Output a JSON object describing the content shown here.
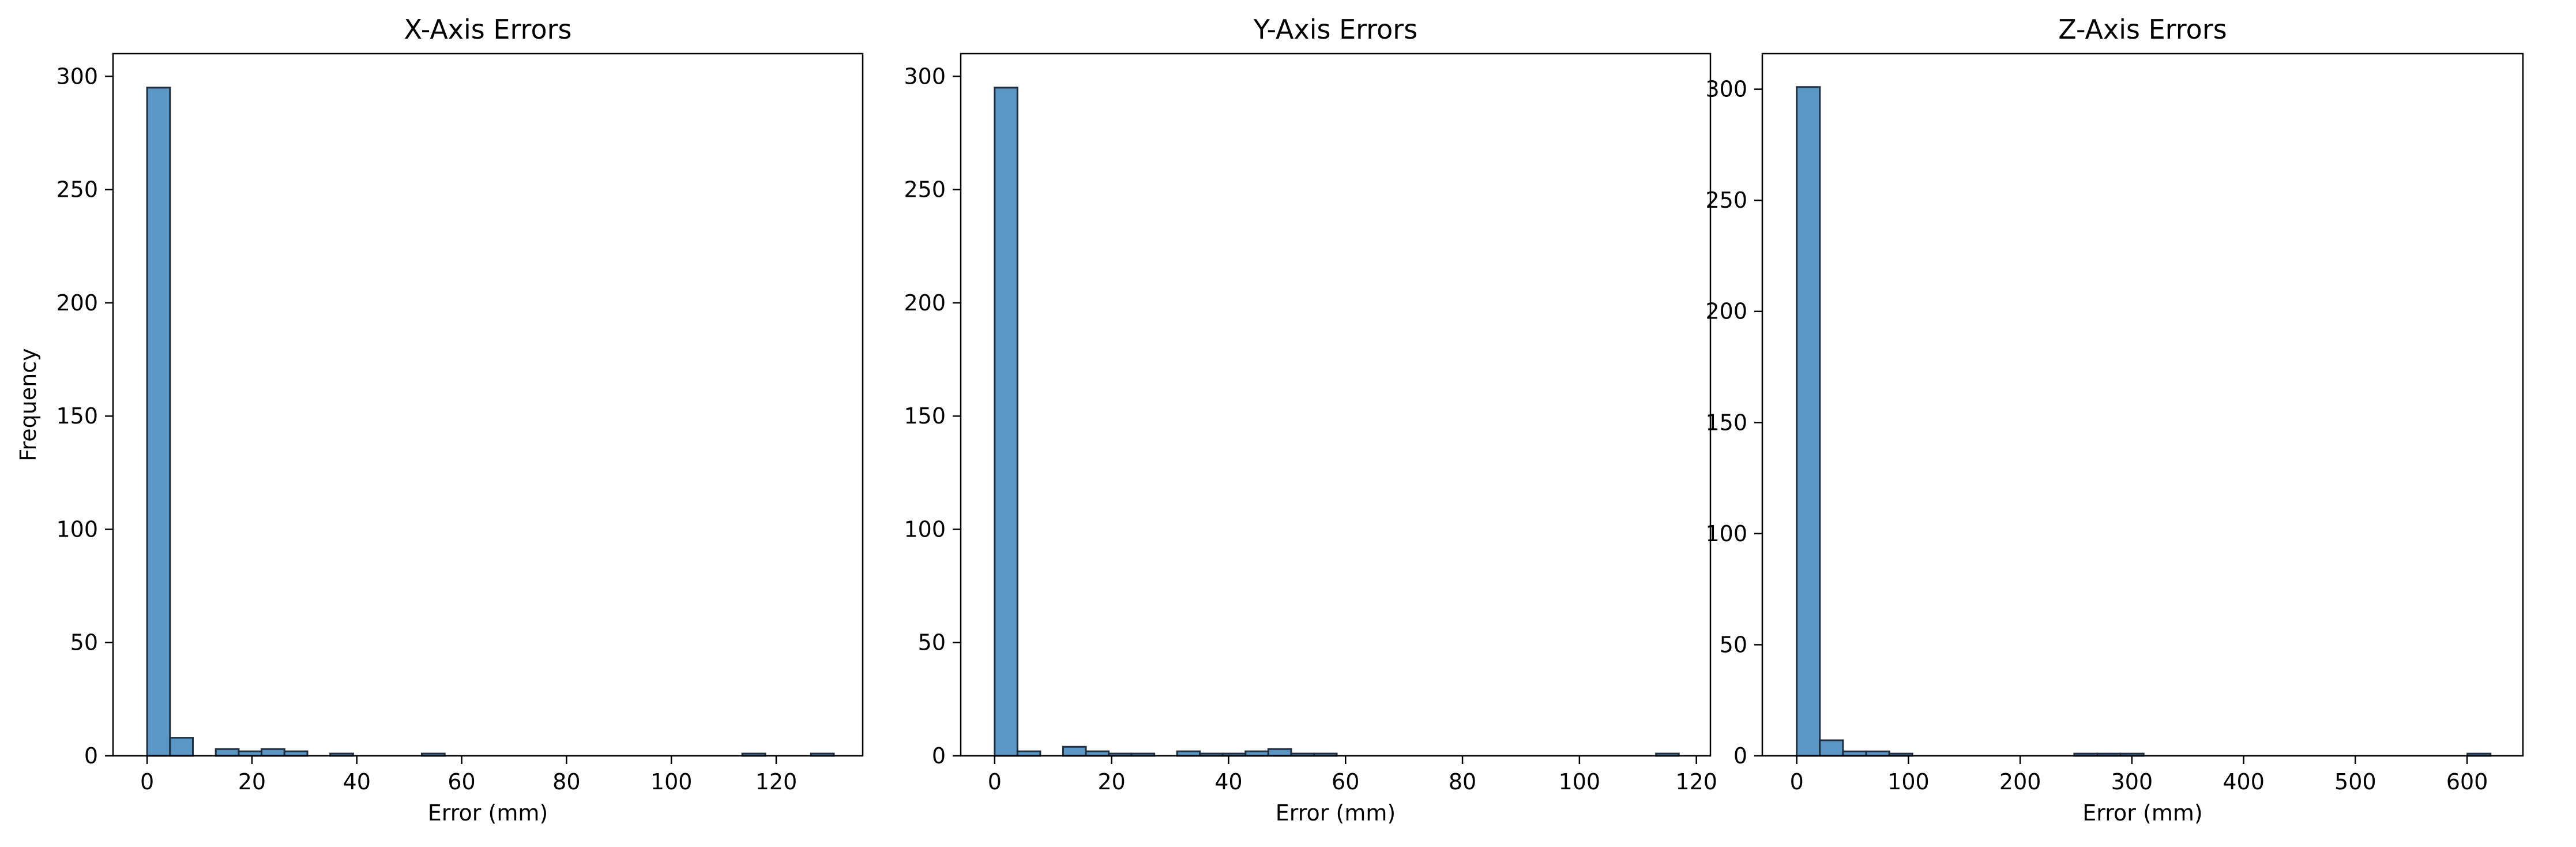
{
  "chart_data": [
    {
      "type": "bar",
      "title": "X-Axis Errors",
      "xlabel": "Error (mm)",
      "ylabel": "Frequency",
      "xlim": [
        -6.5,
        136.5
      ],
      "ylim": [
        0,
        310
      ],
      "xticks": [
        0,
        20,
        40,
        60,
        80,
        100,
        120
      ],
      "yticks": [
        0,
        50,
        100,
        150,
        200,
        250,
        300
      ],
      "bin_edges": [
        0,
        4.367,
        8.733,
        13.1,
        17.467,
        21.833,
        26.2,
        30.567,
        34.933,
        39.3,
        43.667,
        48.033,
        52.4,
        56.767,
        61.133,
        65.5,
        69.867,
        74.233,
        78.6,
        82.967,
        87.333,
        91.7,
        96.067,
        100.433,
        104.8,
        109.167,
        113.533,
        117.9,
        122.267,
        126.633,
        131.0
      ],
      "values": [
        295,
        8,
        0,
        3,
        2,
        3,
        2,
        0,
        1,
        0,
        0,
        0,
        1,
        0,
        0,
        0,
        0,
        0,
        0,
        0,
        0,
        0,
        0,
        0,
        0,
        0,
        1,
        0,
        0,
        1
      ],
      "grid": false,
      "color": "#5b97c4",
      "edgecolor": "#1f2f3f"
    },
    {
      "type": "bar",
      "title": "Y-Axis Errors",
      "xlabel": "Error (mm)",
      "ylabel": "",
      "xlim": [
        -5.8,
        122.4
      ],
      "ylim": [
        0,
        310
      ],
      "xticks": [
        0,
        20,
        40,
        60,
        80,
        100,
        120
      ],
      "yticks": [
        0,
        50,
        100,
        150,
        200,
        250,
        300
      ],
      "bin_edges": [
        0,
        3.9,
        7.8,
        11.7,
        15.6,
        19.5,
        23.4,
        27.3,
        31.2,
        35.1,
        39.0,
        42.9,
        46.8,
        50.7,
        54.6,
        58.5,
        62.4,
        66.3,
        70.2,
        74.1,
        78.0,
        81.9,
        85.8,
        89.7,
        93.6,
        97.5,
        101.4,
        105.3,
        109.2,
        113.1,
        117.0
      ],
      "values": [
        295,
        2,
        0,
        4,
        2,
        1,
        1,
        0,
        2,
        1,
        1,
        2,
        3,
        1,
        1,
        0,
        0,
        0,
        0,
        0,
        0,
        0,
        0,
        0,
        0,
        0,
        0,
        0,
        0,
        1
      ],
      "grid": false,
      "color": "#5b97c4",
      "edgecolor": "#1f2f3f"
    },
    {
      "type": "bar",
      "title": "Z-Axis Errors",
      "xlabel": "Error (mm)",
      "ylabel": "",
      "xlim": [
        -30.8,
        650.0
      ],
      "ylim": [
        0,
        316
      ],
      "xticks": [
        0,
        100,
        200,
        300,
        400,
        500,
        600
      ],
      "yticks": [
        0,
        50,
        100,
        150,
        200,
        250,
        300
      ],
      "bin_edges": [
        0,
        20.7,
        41.4,
        62.1,
        82.8,
        103.5,
        124.2,
        144.9,
        165.6,
        186.3,
        207.0,
        227.7,
        248.4,
        269.1,
        289.8,
        310.5,
        331.2,
        351.9,
        372.6,
        393.3,
        414.0,
        434.7,
        455.4,
        476.1,
        496.8,
        517.5,
        538.2,
        558.9,
        579.6,
        600.3,
        621.0
      ],
      "values": [
        301,
        7,
        2,
        2,
        1,
        0,
        0,
        0,
        0,
        0,
        0,
        0,
        1,
        1,
        1,
        0,
        0,
        0,
        0,
        0,
        0,
        0,
        0,
        0,
        0,
        0,
        0,
        0,
        0,
        1
      ],
      "grid": false,
      "color": "#5b97c4",
      "edgecolor": "#1f2f3f"
    }
  ]
}
